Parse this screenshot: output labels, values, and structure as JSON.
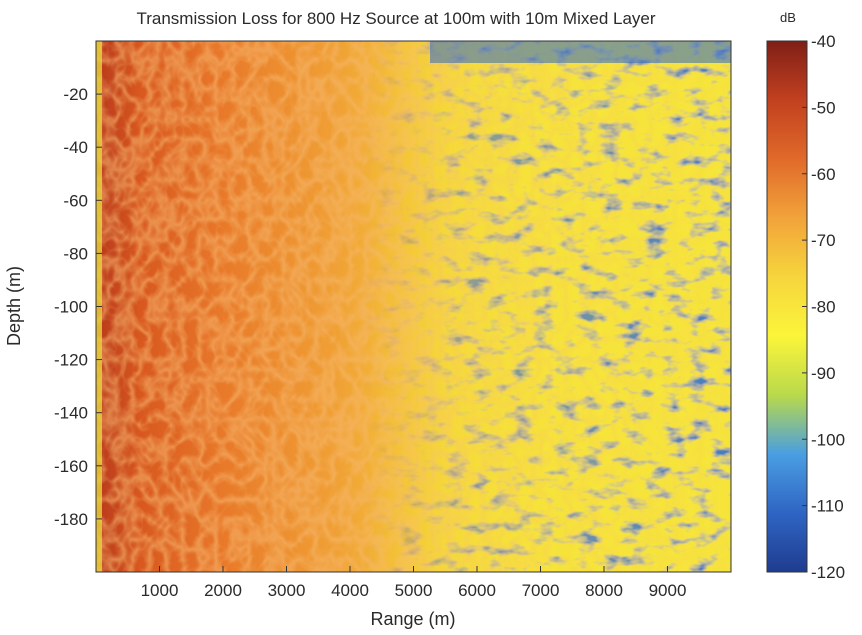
{
  "chart_data": {
    "type": "heatmap",
    "title": "Transmission Loss for 800 Hz Source at 100m with 10m Mixed Layer",
    "xlabel": "Range (m)",
    "ylabel": "Depth (m)",
    "xlim": [
      0,
      10000
    ],
    "ylim": [
      -200,
      0
    ],
    "xticks": [
      1000,
      2000,
      3000,
      4000,
      5000,
      6000,
      7000,
      8000,
      9000
    ],
    "xtick_labels": [
      "1000",
      "2000",
      "3000",
      "4000",
      "5000",
      "6000",
      "7000",
      "8000",
      "9000"
    ],
    "yticks": [
      -20,
      -40,
      -60,
      -80,
      -100,
      -120,
      -140,
      -160,
      -180
    ],
    "ytick_labels": [
      "-20",
      "-40",
      "-60",
      "-80",
      "-100",
      "-120",
      "-140",
      "-160",
      "-180"
    ],
    "colorbar": {
      "unit_label": "dB",
      "range": [
        -120,
        -40
      ],
      "ticks": [
        -40,
        -50,
        -60,
        -70,
        -80,
        -90,
        -100,
        -110,
        -120
      ],
      "tick_labels": [
        "-40",
        "-50",
        "-60",
        "-70",
        "-80",
        "-90",
        "-100",
        "-110",
        "-120"
      ],
      "colormap": [
        "#7f1f17",
        "#c2401f",
        "#e06a2a",
        "#f2a33a",
        "#f6d53d",
        "#fbf53a",
        "#b9d94b",
        "#4a9ee2",
        "#2f65c4",
        "#1f3c8f"
      ]
    },
    "source": {
      "frequency_hz": 800,
      "depth_m": 100,
      "mixed_layer_m": 10
    },
    "grid": false,
    "legend": "none"
  }
}
